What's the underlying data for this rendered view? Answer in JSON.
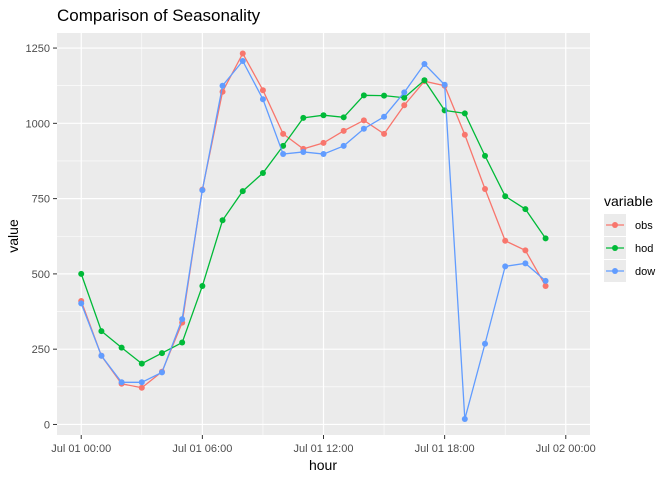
{
  "chart_data": {
    "type": "line",
    "title": "Comparison of Seasonality",
    "xlabel": "hour",
    "ylabel": "value",
    "x": [
      0,
      1,
      2,
      3,
      4,
      5,
      6,
      7,
      8,
      9,
      10,
      11,
      12,
      13,
      14,
      15,
      16,
      17,
      18,
      19,
      20,
      21,
      22,
      23
    ],
    "x_ticks": [
      {
        "hour": 0,
        "label": "Jul 01 00:00"
      },
      {
        "hour": 6,
        "label": "Jul 01 06:00"
      },
      {
        "hour": 12,
        "label": "Jul 01 12:00"
      },
      {
        "hour": 18,
        "label": "Jul 01 18:00"
      },
      {
        "hour": 24,
        "label": "Jul 02 00:00"
      }
    ],
    "xlim": [
      -1.2,
      25.2
    ],
    "y_ticks": [
      0,
      250,
      500,
      750,
      1000,
      1250
    ],
    "ylim": [
      -35,
      1300
    ],
    "grid": true,
    "legend": {
      "title": "variable",
      "placement": "right"
    },
    "series": [
      {
        "name": "obs",
        "color": "#F8766D",
        "values": [
          410,
          228,
          135,
          122,
          175,
          338,
          780,
          1105,
          1232,
          1110,
          965,
          915,
          935,
          975,
          1010,
          965,
          1060,
          1140,
          1125,
          962,
          782,
          610,
          578,
          460
        ]
      },
      {
        "name": "hod",
        "color": "#00BA38",
        "values": [
          500,
          310,
          255,
          202,
          237,
          272,
          460,
          678,
          775,
          835,
          925,
          1018,
          1027,
          1020,
          1093,
          1092,
          1085,
          1143,
          1043,
          1033,
          892,
          758,
          715,
          618
        ]
      },
      {
        "name": "dow",
        "color": "#619CFF",
        "values": [
          402,
          228,
          140,
          140,
          173,
          350,
          778,
          1125,
          1207,
          1080,
          898,
          905,
          898,
          925,
          982,
          1022,
          1103,
          1197,
          1128,
          18,
          268,
          525,
          535,
          477
        ]
      }
    ]
  }
}
